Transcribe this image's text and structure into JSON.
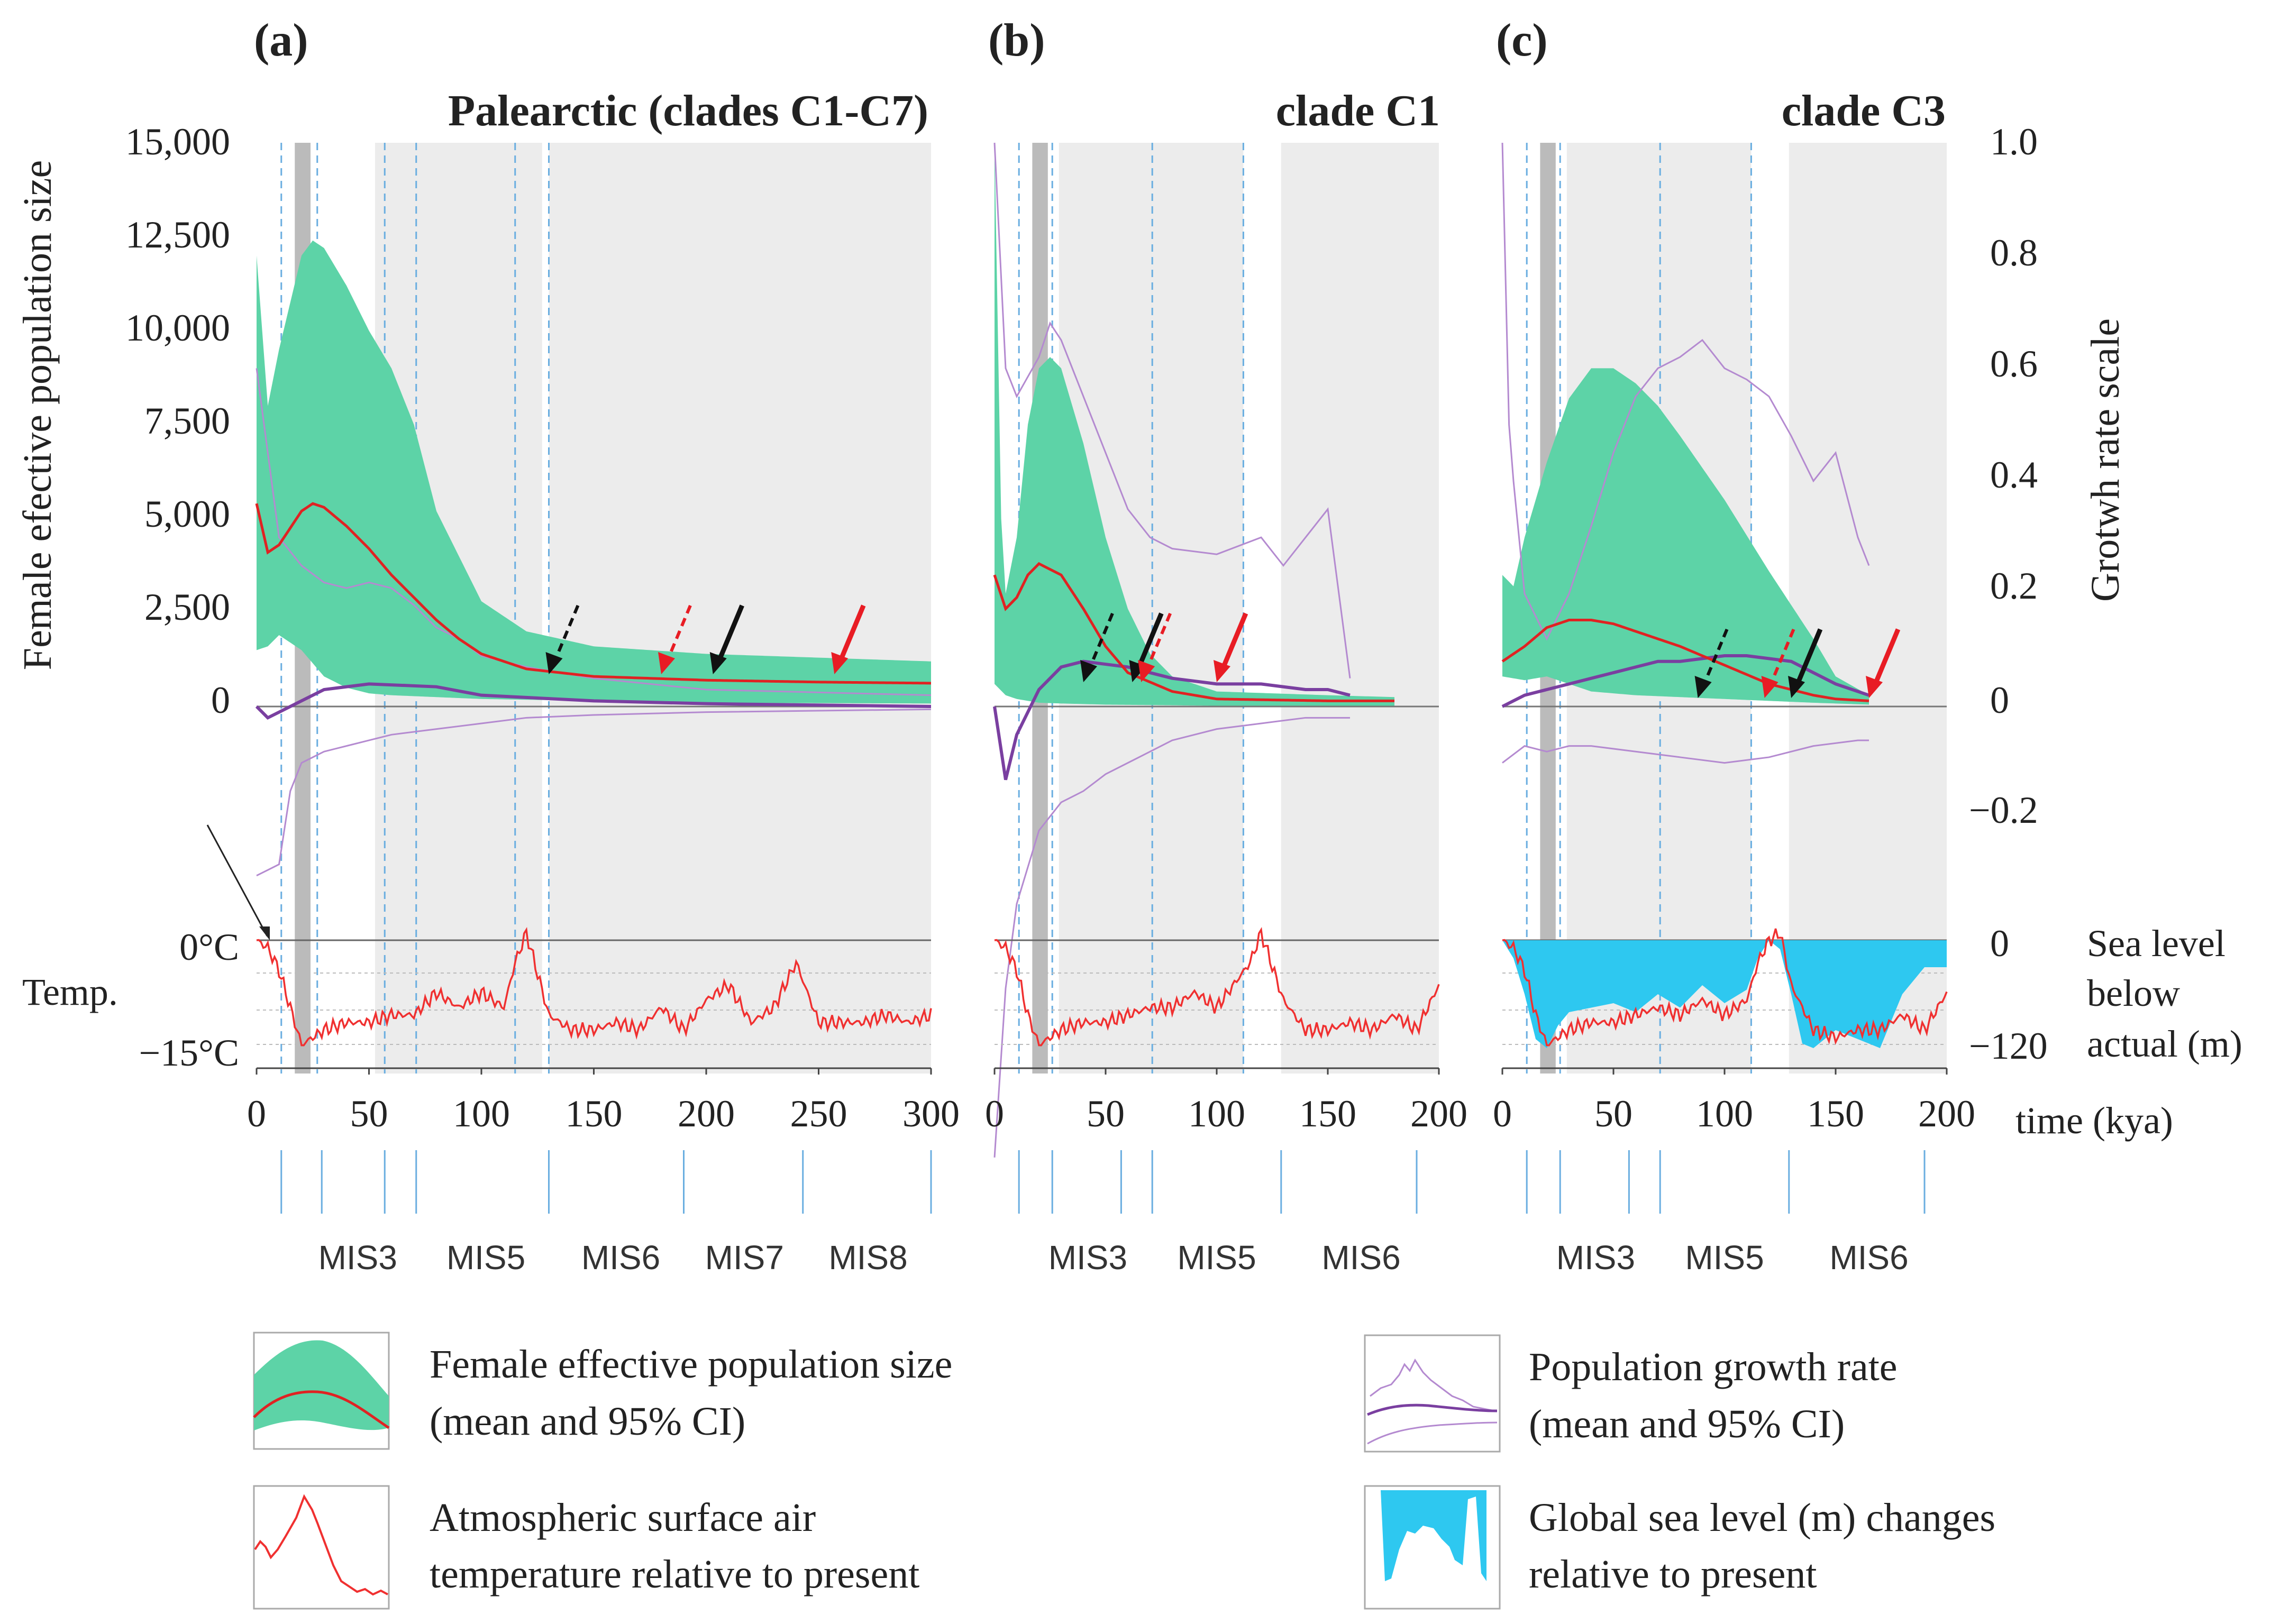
{
  "colors": {
    "ne_ci": "#5dd3a7",
    "ne_mean": "#e02222",
    "growth": "#7a3fa0",
    "growth_ci": "#b48ad0",
    "temp": "#f03030",
    "sea": "#2ec8f0",
    "interglacial_bg": "#ececec",
    "lgm_band": "#bbbbbb",
    "mis_line": "#6aaee0",
    "arrow_black": "#111111",
    "arrow_red": "#e81c24"
  },
  "labels": {
    "y_left_title": "Female efective population size",
    "y_right_title": "Grotwh rate scale",
    "temp_label": "Temp.",
    "temp_ticks": [
      "0°C",
      "−15°C"
    ],
    "sea_ticks": [
      "0",
      "−120"
    ],
    "sea_title": [
      "Sea level",
      "below",
      "actual (m)"
    ],
    "x_title": "time (kya)"
  },
  "left_axis": {
    "ticks": [
      "15,000",
      "12,500",
      "10,000",
      "7,500",
      "5,000",
      "2,500",
      "0"
    ]
  },
  "right_axis": {
    "ticks": [
      "1.0",
      "0.8",
      "0.6",
      "0.4",
      "0.2",
      "0",
      "−0.2"
    ]
  },
  "panels": [
    {
      "letter": "(a)",
      "title": "Palearctic (clades C1-C7)",
      "x_ticks": [
        "0",
        "50",
        "100",
        "150",
        "200",
        "250",
        "300"
      ],
      "mis_labels": [
        "MIS3",
        "MIS5",
        "MIS6",
        "MIS7",
        "MIS8"
      ]
    },
    {
      "letter": "(b)",
      "title": "clade C1",
      "x_ticks": [
        "0",
        "50",
        "100",
        "150",
        "200"
      ],
      "mis_labels": [
        "MIS3",
        "MIS5",
        "MIS6"
      ]
    },
    {
      "letter": "(c)",
      "title": "clade C3",
      "x_ticks": [
        "0",
        "50",
        "100",
        "150",
        "200"
      ],
      "mis_labels": [
        "MIS3",
        "MIS5",
        "MIS6"
      ]
    }
  ],
  "legend": [
    {
      "icon": "ne-legend-icon",
      "lines": [
        "Female effective population size",
        "(mean and 95% CI)"
      ]
    },
    {
      "icon": "growth-legend-icon",
      "lines": [
        "Population growth rate",
        "(mean and 95% CI)"
      ]
    },
    {
      "icon": "temp-legend-icon",
      "lines": [
        "Atmospheric surface air",
        "temperature relative to present"
      ]
    },
    {
      "icon": "sea-legend-icon",
      "lines": [
        "Global sea level (m) changes",
        "relative to present"
      ]
    }
  ],
  "chart_data": [
    {
      "type": "area",
      "title": "Palearctic (clades C1-C7)",
      "xlabel": "time (kya)",
      "ylabel": "Female efective population size",
      "xlim": [
        0,
        300
      ],
      "ylim": [
        0,
        15000
      ],
      "growth_ylim": [
        -0.2,
        1.0
      ],
      "temp_ylim": [
        -15,
        0
      ],
      "series": [
        {
          "name": "Ne mean",
          "x": [
            0,
            5,
            10,
            20,
            25,
            30,
            40,
            50,
            60,
            70,
            80,
            90,
            100,
            120,
            150,
            200,
            250,
            300
          ],
          "values": [
            5400,
            4100,
            4300,
            5200,
            5400,
            5300,
            4800,
            4200,
            3500,
            2900,
            2300,
            1800,
            1400,
            1000,
            800,
            700,
            650,
            620
          ]
        },
        {
          "name": "Ne 95% CI upper",
          "x": [
            0,
            5,
            10,
            20,
            25,
            30,
            40,
            50,
            60,
            70,
            80,
            100,
            120,
            150,
            200,
            300
          ],
          "values": [
            12000,
            8000,
            9500,
            12000,
            12400,
            12200,
            11200,
            10000,
            9000,
            7500,
            5200,
            2800,
            2000,
            1600,
            1400,
            1200
          ]
        },
        {
          "name": "Ne 95% CI lower",
          "x": [
            0,
            5,
            10,
            20,
            30,
            40,
            50,
            60,
            80,
            100,
            150,
            200,
            300
          ],
          "values": [
            1500,
            1600,
            1900,
            1500,
            800,
            500,
            350,
            300,
            250,
            200,
            150,
            100,
            80
          ]
        },
        {
          "name": "Growth rate mean",
          "x": [
            0,
            5,
            10,
            20,
            30,
            50,
            80,
            100,
            150,
            200,
            300
          ],
          "values": [
            0.0,
            -0.02,
            -0.01,
            0.01,
            0.03,
            0.04,
            0.035,
            0.02,
            0.01,
            0.005,
            0.0
          ]
        },
        {
          "name": "Growth rate CI upper",
          "x": [
            0,
            5,
            10,
            20,
            30,
            40,
            50,
            60,
            70,
            80,
            90,
            100,
            120,
            150,
            200,
            300
          ],
          "values": [
            0.6,
            0.45,
            0.3,
            0.25,
            0.22,
            0.21,
            0.22,
            0.21,
            0.18,
            0.14,
            0.12,
            0.09,
            0.07,
            0.05,
            0.03,
            0.02
          ]
        },
        {
          "name": "Growth rate CI lower",
          "x": [
            0,
            10,
            15,
            20,
            30,
            40,
            50,
            60,
            80,
            100,
            120,
            150,
            200,
            300
          ],
          "values": [
            -0.3,
            -0.28,
            -0.15,
            -0.1,
            -0.08,
            -0.07,
            -0.06,
            -0.05,
            -0.04,
            -0.03,
            -0.02,
            -0.015,
            -0.01,
            -0.005
          ]
        },
        {
          "name": "Temperature",
          "x": [
            0,
            5,
            10,
            15,
            20,
            30,
            40,
            50,
            60,
            70,
            80,
            90,
            100,
            110,
            115,
            120,
            130,
            140,
            150,
            160,
            170,
            180,
            190,
            200,
            210,
            220,
            230,
            240,
            250,
            260,
            270,
            280,
            290,
            300
          ],
          "values": [
            0,
            -1,
            -4,
            -9,
            -14,
            -12,
            -11,
            -11,
            -10,
            -10,
            -7,
            -9,
            -7,
            -9,
            -3,
            1,
            -10,
            -12,
            -12,
            -11,
            -12,
            -9,
            -12,
            -8,
            -6,
            -11,
            -9,
            -3,
            -11,
            -11,
            -11,
            -10,
            -11,
            -10
          ]
        }
      ]
    },
    {
      "type": "area",
      "title": "clade C1",
      "xlabel": "time (kya)",
      "xlim": [
        0,
        200
      ],
      "ylim": [
        0,
        15000
      ],
      "series": [
        {
          "name": "Ne mean",
          "x": [
            0,
            5,
            10,
            15,
            20,
            30,
            40,
            50,
            60,
            80,
            100,
            150,
            180
          ],
          "values": [
            3500,
            2600,
            2900,
            3500,
            3800,
            3500,
            2600,
            1600,
            900,
            400,
            200,
            150,
            150
          ]
        },
        {
          "name": "Ne 95% CI upper",
          "x": [
            0,
            3,
            5,
            10,
            15,
            20,
            25,
            30,
            40,
            50,
            60,
            70,
            80,
            100,
            150,
            180
          ],
          "values": [
            15000,
            5000,
            3000,
            4500,
            7500,
            9000,
            9300,
            9000,
            7000,
            4500,
            2600,
            1400,
            800,
            400,
            300,
            250
          ]
        },
        {
          "name": "Ne 95% CI lower",
          "x": [
            0,
            5,
            10,
            20,
            30,
            50,
            100,
            180
          ],
          "values": [
            600,
            300,
            200,
            100,
            80,
            50,
            20,
            10
          ]
        },
        {
          "name": "Growth rate mean",
          "x": [
            0,
            5,
            10,
            20,
            30,
            40,
            50,
            60,
            70,
            80,
            100,
            120,
            140,
            150,
            160
          ],
          "values": [
            0.0,
            -0.13,
            -0.05,
            0.03,
            0.07,
            0.08,
            0.075,
            0.07,
            0.06,
            0.05,
            0.04,
            0.04,
            0.03,
            0.03,
            0.02
          ]
        },
        {
          "name": "Growth rate CI upper",
          "x": [
            0,
            5,
            10,
            20,
            25,
            30,
            40,
            50,
            60,
            70,
            80,
            100,
            120,
            130,
            140,
            150,
            160
          ],
          "values": [
            1.0,
            0.6,
            0.55,
            0.62,
            0.68,
            0.65,
            0.55,
            0.45,
            0.35,
            0.3,
            0.28,
            0.27,
            0.3,
            0.25,
            0.3,
            0.35,
            0.05
          ]
        },
        {
          "name": "Growth rate CI lower",
          "x": [
            0,
            5,
            10,
            20,
            30,
            40,
            50,
            60,
            80,
            100,
            120,
            140,
            160
          ],
          "values": [
            -0.8,
            -0.5,
            -0.35,
            -0.22,
            -0.17,
            -0.15,
            -0.12,
            -0.1,
            -0.06,
            -0.04,
            -0.03,
            -0.02,
            -0.02
          ]
        },
        {
          "name": "Temperature",
          "x": [
            0,
            5,
            10,
            15,
            20,
            30,
            40,
            50,
            60,
            70,
            80,
            90,
            100,
            110,
            115,
            120,
            130,
            140,
            150,
            160,
            170,
            180,
            190,
            200
          ],
          "values": [
            0,
            -1,
            -4,
            -10,
            -14,
            -12,
            -11,
            -11,
            -10,
            -9,
            -9,
            -7,
            -9,
            -5,
            -3,
            1,
            -8,
            -12,
            -12,
            -11,
            -12,
            -10,
            -12,
            -6
          ]
        }
      ]
    },
    {
      "type": "area",
      "title": "clade C3",
      "xlabel": "time (kya)",
      "xlim": [
        0,
        200
      ],
      "ylim": [
        0,
        15000
      ],
      "sea_ylim": [
        -120,
        0
      ],
      "series": [
        {
          "name": "Ne mean",
          "x": [
            0,
            5,
            10,
            20,
            30,
            40,
            50,
            60,
            80,
            100,
            120,
            140,
            150,
            165
          ],
          "values": [
            1200,
            1400,
            1600,
            2100,
            2300,
            2300,
            2200,
            2000,
            1600,
            1100,
            600,
            300,
            200,
            150
          ]
        },
        {
          "name": "Ne 95% CI upper",
          "x": [
            0,
            5,
            10,
            20,
            30,
            40,
            50,
            60,
            70,
            80,
            100,
            120,
            140,
            150,
            165
          ],
          "values": [
            3500,
            3200,
            4500,
            6500,
            8200,
            9000,
            9000,
            8600,
            8000,
            7200,
            5500,
            3600,
            1800,
            800,
            300
          ]
        },
        {
          "name": "Ne 95% CI lower",
          "x": [
            0,
            10,
            20,
            30,
            40,
            60,
            80,
            100,
            120,
            140,
            165
          ],
          "values": [
            800,
            700,
            800,
            600,
            400,
            300,
            250,
            200,
            150,
            100,
            50
          ]
        },
        {
          "name": "Growth rate mean",
          "x": [
            0,
            5,
            10,
            20,
            30,
            40,
            50,
            60,
            70,
            80,
            90,
            100,
            110,
            120,
            130,
            140,
            150,
            165
          ],
          "values": [
            0.0,
            0.01,
            0.02,
            0.03,
            0.04,
            0.05,
            0.06,
            0.07,
            0.08,
            0.08,
            0.085,
            0.09,
            0.09,
            0.085,
            0.08,
            0.06,
            0.04,
            0.02
          ]
        },
        {
          "name": "Growth rate CI upper",
          "x": [
            0,
            3,
            5,
            10,
            20,
            30,
            40,
            50,
            60,
            70,
            80,
            90,
            100,
            110,
            120,
            130,
            140,
            150,
            160,
            165
          ],
          "values": [
            1.0,
            0.5,
            0.4,
            0.2,
            0.12,
            0.2,
            0.32,
            0.45,
            0.55,
            0.6,
            0.62,
            0.65,
            0.6,
            0.58,
            0.55,
            0.48,
            0.4,
            0.45,
            0.3,
            0.25
          ]
        },
        {
          "name": "Growth rate CI lower",
          "x": [
            0,
            10,
            20,
            30,
            40,
            60,
            80,
            100,
            120,
            140,
            160,
            165
          ],
          "values": [
            -0.1,
            -0.07,
            -0.08,
            -0.07,
            -0.07,
            -0.08,
            -0.09,
            -0.1,
            -0.09,
            -0.07,
            -0.06,
            -0.06
          ]
        },
        {
          "name": "Temperature",
          "x": [
            0,
            5,
            10,
            15,
            20,
            30,
            40,
            50,
            60,
            70,
            80,
            90,
            100,
            110,
            115,
            120,
            125,
            130,
            140,
            150,
            160,
            170,
            180,
            190,
            200
          ],
          "values": [
            0,
            -1,
            -4,
            -10,
            -14,
            -12,
            -11,
            -11,
            -10,
            -9,
            -10,
            -8,
            -10,
            -8,
            -3,
            0,
            1,
            -6,
            -12,
            -13,
            -12,
            -12,
            -10,
            -12,
            -7
          ]
        },
        {
          "name": "Sea level",
          "x": [
            0,
            5,
            10,
            15,
            20,
            25,
            30,
            40,
            50,
            60,
            70,
            80,
            90,
            100,
            110,
            115,
            120,
            125,
            130,
            135,
            140,
            150,
            160,
            170,
            180,
            190,
            200
          ],
          "values": [
            0,
            -20,
            -60,
            -110,
            -120,
            -95,
            -80,
            -75,
            -70,
            -80,
            -60,
            -75,
            -50,
            -70,
            -55,
            -20,
            0,
            -10,
            -60,
            -115,
            -120,
            -100,
            -110,
            -120,
            -60,
            -30,
            -30
          ]
        }
      ]
    }
  ]
}
